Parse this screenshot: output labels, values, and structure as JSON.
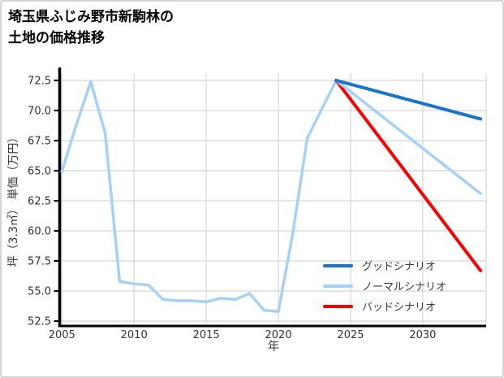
{
  "title": {
    "line1": "埼玉県ふじみ野市新駒林の",
    "line2": "土地の価格推移"
  },
  "colors": {
    "card_border": "#d4d4d4",
    "grid": "#d8d8d8",
    "axis": "#000000",
    "tick_text": "#333333",
    "good": "#1a75c8",
    "normal": "#a6d0f5",
    "bad": "#fa0000"
  },
  "chart_data": {
    "type": "line",
    "title": "埼玉県ふじみ野市新駒林の土地の価格推移",
    "xlabel": "年",
    "ylabel": "坪（3.3㎡） 単価（万円）",
    "xlim": [
      2004.93,
      2034.39
    ],
    "ylim": [
      52.2,
      73.1
    ],
    "xticks": [
      2005,
      2010,
      2015,
      2020,
      2025,
      2030
    ],
    "yticks": [
      52.5,
      55.0,
      57.5,
      60.0,
      62.5,
      65.0,
      67.5,
      70.0,
      72.5
    ],
    "grid": true,
    "legend_position": "lower-right-inside",
    "series": [
      {
        "id": "historical",
        "label": "",
        "color": "#a6d0f5",
        "width": 3.5,
        "in_legend": false,
        "x": [
          2005,
          2006,
          2007,
          2008,
          2009,
          2010,
          2011,
          2012,
          2013,
          2014,
          2015,
          2016,
          2017,
          2018,
          2019,
          2020,
          2021,
          2022,
          2023,
          2024
        ],
        "values": [
          64.9,
          68.8,
          72.4,
          68.1,
          55.8,
          55.6,
          55.5,
          54.3,
          54.2,
          54.2,
          54.1,
          54.4,
          54.3,
          54.8,
          53.4,
          53.3,
          59.8,
          67.7,
          70.1,
          72.5
        ]
      },
      {
        "id": "good-scenario",
        "label": "グッドシナリオ",
        "color": "#1a75c8",
        "width": 4,
        "in_legend": true,
        "x": [
          2024,
          2034
        ],
        "values": [
          72.5,
          69.3
        ]
      },
      {
        "id": "normal-scenario",
        "label": "ノーマルシナリオ",
        "color": "#a6d0f5",
        "width": 3.5,
        "in_legend": true,
        "x": [
          2024,
          2034
        ],
        "values": [
          72.5,
          63.1
        ]
      },
      {
        "id": "bad-scenario",
        "label": "バッドシナリオ",
        "color": "#fa0000",
        "width": 4,
        "in_legend": true,
        "x": [
          2024,
          2034
        ],
        "values": [
          72.5,
          56.7
        ]
      }
    ]
  }
}
